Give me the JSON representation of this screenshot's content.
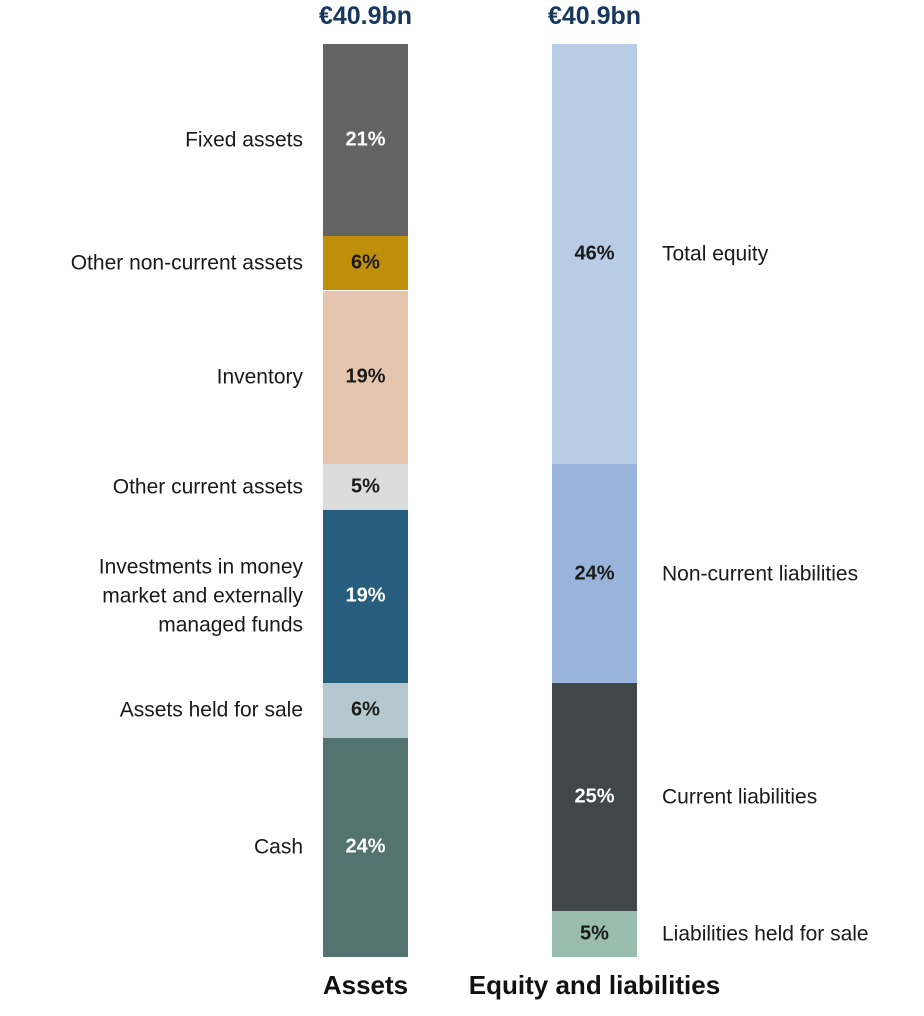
{
  "chart_data": {
    "type": "stacked_column",
    "columns": [
      {
        "name": "Assets",
        "total": "€40.9bn",
        "label_side": "left",
        "segments": [
          {
            "name": "Fixed assets",
            "value": 21,
            "value_label": "21%",
            "color": "#646464"
          },
          {
            "name": "Other non-current assets",
            "value": 6,
            "value_label": "6%",
            "color": "#bf8f0c"
          },
          {
            "name": "Inventory",
            "value": 19,
            "value_label": "19%",
            "color": "#e5c5ae"
          },
          {
            "name": "Other current assets",
            "value": 5,
            "value_label": "5%",
            "color": "#dcdcdc"
          },
          {
            "name": "Investments in money\nmarket and externally\nmanaged funds",
            "value": 19,
            "value_label": "19%",
            "color": "#275d7d"
          },
          {
            "name": "Assets held for sale",
            "value": 6,
            "value_label": "6%",
            "color": "#b6c8cf"
          },
          {
            "name": "Cash",
            "value": 24,
            "value_label": "24%",
            "color": "#527370"
          }
        ]
      },
      {
        "name": "Equity and liabilities",
        "total": "€40.9bn",
        "label_side": "right",
        "segments": [
          {
            "name": "Total equity",
            "value": 46,
            "value_label": "46%",
            "color": "#b8cde5"
          },
          {
            "name": "Non-current liabilities",
            "value": 24,
            "value_label": "24%",
            "color": "#98b4da"
          },
          {
            "name": "Current liabilities",
            "value": 25,
            "value_label": "25%",
            "color": "#404748"
          },
          {
            "name": "Liabilities held for sale",
            "value": 5,
            "value_label": "5%",
            "color": "#98bdaf"
          }
        ]
      }
    ]
  }
}
